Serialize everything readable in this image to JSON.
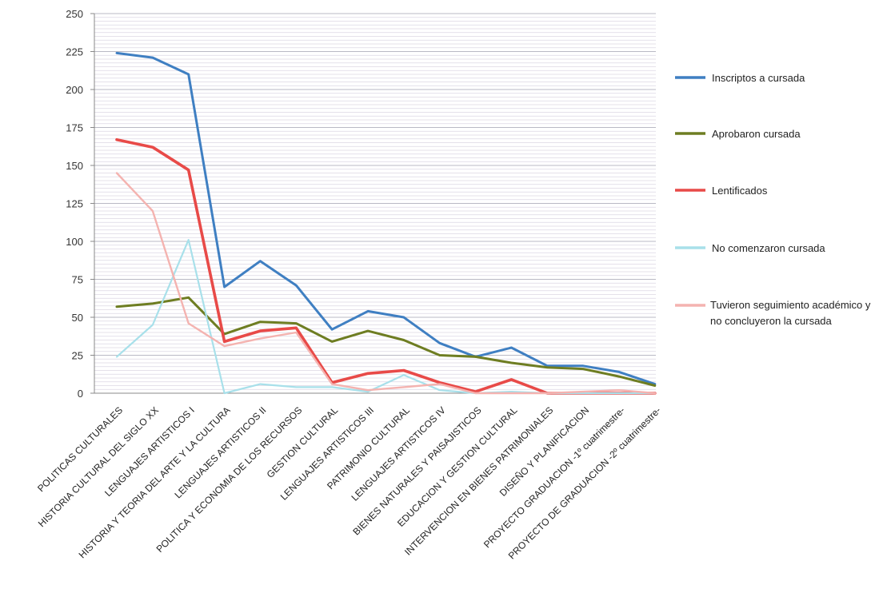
{
  "chart_data": {
    "type": "line",
    "title": "",
    "xlabel": "",
    "ylabel": "",
    "ylim": [
      0,
      250
    ],
    "yticks": [
      0,
      25,
      50,
      75,
      100,
      125,
      150,
      175,
      200,
      225,
      250
    ],
    "grid": true,
    "legend_position": "right",
    "categories": [
      "POLITICAS CULTURALES",
      "HISTORIA CULTURAL DEL SIGLO XX",
      "LENGUAJES ARTISTICOS I",
      "HISTORIA Y TEORIA DEL ARTE Y LA CULTURA",
      "LENGUAJES ARTISTICOS II",
      "POLITICA Y ECONOMIA DE LOS RECURSOS",
      "GESTION CULTURAL",
      "LENGUAJES ARTISTICOS III",
      "PATRIMONIO CULTURAL",
      "LENGUAJES ARTISTICOS IV",
      "BIENES NATURALES Y PAISAJISTICOS",
      "EDUCACION Y GESTION CULTURAL",
      "INTERVENCION EN BIENES PATRIMONIALES",
      "DISEÑO Y PLANIFICACION",
      "PROYECTO GRADUACION -1º cuatrimestre-",
      "PROYECTO DE GRADUACION -2º cuatrimestre-"
    ],
    "series": [
      {
        "name": "Inscriptos a cursada",
        "color": "#3f7fc2",
        "values": [
          224,
          221,
          210,
          70,
          87,
          71,
          42,
          54,
          50,
          33,
          24,
          30,
          18,
          18,
          14,
          6
        ]
      },
      {
        "name": "Aprobaron cursada",
        "color": "#6e7d22",
        "values": [
          57,
          59,
          63,
          39,
          47,
          46,
          34,
          41,
          35,
          25,
          24,
          20,
          17,
          16,
          11,
          5
        ]
      },
      {
        "name": "Lentificados",
        "color": "#e84a48",
        "values": [
          167,
          162,
          147,
          34,
          41,
          43,
          7,
          13,
          15,
          7,
          1,
          9,
          0,
          0,
          0,
          0
        ]
      },
      {
        "name": "No comenzaron cursada",
        "color": "#a8e0ea",
        "values": [
          24,
          45,
          101,
          0,
          6,
          4,
          4,
          1,
          12,
          2,
          0,
          1,
          0,
          0,
          0,
          0
        ]
      },
      {
        "name": "Tuvieron seguimiento académico y no concluyeron la cursada",
        "color": "#f4b3b0",
        "values": [
          145,
          120,
          46,
          31,
          36,
          40,
          6,
          2,
          4,
          6,
          0,
          0,
          0,
          1,
          2,
          0
        ]
      }
    ]
  }
}
